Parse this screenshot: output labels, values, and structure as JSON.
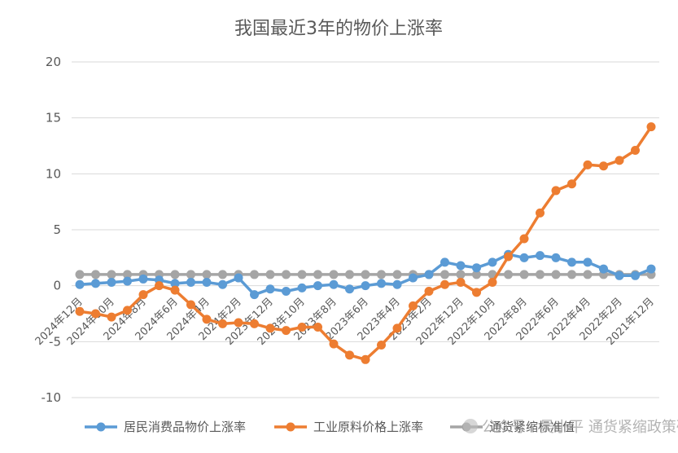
{
  "chart_data": {
    "type": "line",
    "title": "我国最近3年的物价上涨率",
    "ylim": [
      -10,
      20
    ],
    "yticks": [
      "-10",
      "-5",
      "0",
      "5",
      "10",
      "15",
      "20"
    ],
    "ytick_values": [
      -10,
      -5,
      0,
      5,
      10,
      15,
      20
    ],
    "grid": true,
    "legend_position": "bottom",
    "categories": [
      "2024年12月",
      "2024年11月",
      "2024年10月",
      "2024年9月",
      "2024年8月",
      "2024年7月",
      "2024年6月",
      "2024年5月",
      "2024年4月",
      "2024年3月",
      "2024年2月",
      "2024年1月",
      "2023年12月",
      "2023年11月",
      "2023年10月",
      "2023年9月",
      "2023年8月",
      "2023年7月",
      "2023年6月",
      "2023年5月",
      "2023年4月",
      "2023年3月",
      "2023年2月",
      "2023年1月",
      "2022年12月",
      "2022年11月",
      "2022年10月",
      "2022年9月",
      "2022年8月",
      "2022年7月",
      "2022年6月",
      "2022年5月",
      "2022年4月",
      "2022年3月",
      "2022年2月",
      "2022年1月",
      "2021年12月"
    ],
    "visible_tick_labels": [
      "2024年12月",
      "2024年10月",
      "2024年8月",
      "2024年6月",
      "2024年4月",
      "2024年2月",
      "2023年12月",
      "2023年10月",
      "2023年8月",
      "2023年6月",
      "2023年4月",
      "2023年2月",
      "2022年12月",
      "2022年10月",
      "2022年8月",
      "2022年6月",
      "2022年4月",
      "2022年2月",
      "2021年12月"
    ],
    "series": [
      {
        "name": "居民消费品物价上涨率",
        "color": "#5B9BD5",
        "values": [
          0.1,
          0.2,
          0.3,
          0.4,
          0.6,
          0.5,
          0.2,
          0.3,
          0.3,
          0.1,
          0.7,
          -0.8,
          -0.3,
          -0.5,
          -0.2,
          0.0,
          0.1,
          -0.3,
          0.0,
          0.2,
          0.1,
          0.7,
          1.0,
          2.1,
          1.8,
          1.6,
          2.1,
          2.8,
          2.5,
          2.7,
          2.5,
          2.1,
          2.1,
          1.5,
          0.9,
          0.9,
          1.5
        ]
      },
      {
        "name": "工业原料价格上涨率",
        "color": "#ED7D31",
        "values": [
          -2.3,
          -2.5,
          -2.8,
          -2.2,
          -0.8,
          0.0,
          -0.4,
          -1.7,
          -3.0,
          -3.4,
          -3.3,
          -3.4,
          -3.8,
          -4.0,
          -3.7,
          -3.7,
          -5.2,
          -6.2,
          -6.6,
          -5.3,
          -3.8,
          -1.8,
          -0.5,
          0.1,
          0.3,
          -0.6,
          0.3,
          2.6,
          4.2,
          6.5,
          8.5,
          9.1,
          10.8,
          10.7,
          11.2,
          12.1,
          14.2
        ]
      },
      {
        "name": "通货紧缩标准值",
        "color": "#A5A5A5",
        "values": [
          1,
          1,
          1,
          1,
          1,
          1,
          1,
          1,
          1,
          1,
          1,
          1,
          1,
          1,
          1,
          1,
          1,
          1,
          1,
          1,
          1,
          1,
          1,
          1,
          1,
          1,
          1,
          1,
          1,
          1,
          1,
          1,
          1,
          1,
          1,
          1,
          1
        ]
      }
    ]
  },
  "watermark": "公众号 · 吴小平 通货紧缩政策研究院"
}
